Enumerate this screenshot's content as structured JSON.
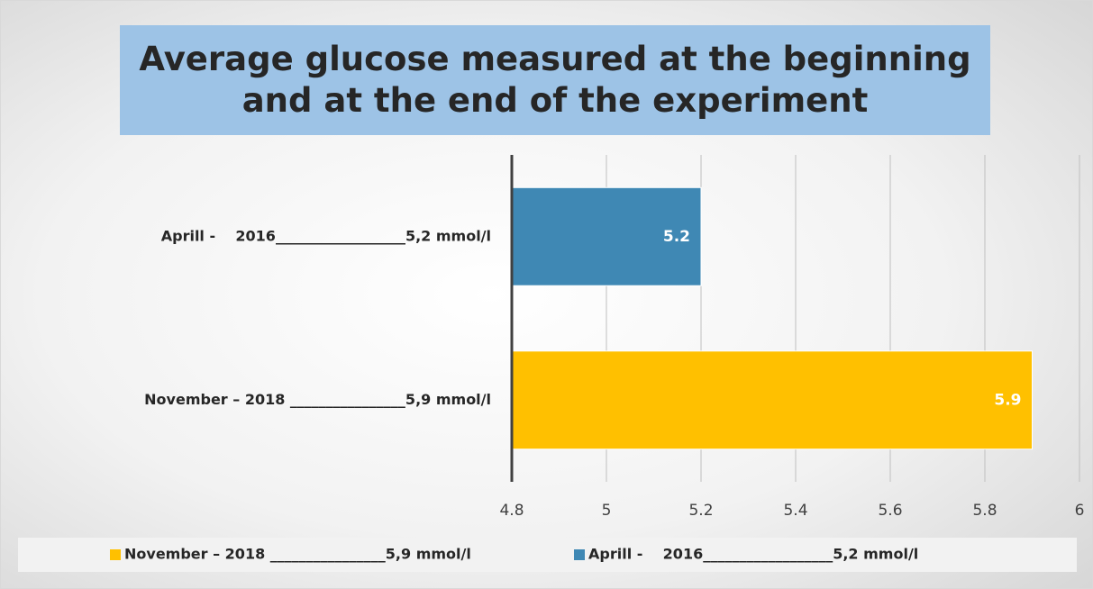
{
  "chart_data": {
    "type": "bar",
    "orientation": "horizontal",
    "title": "Average glucose measured at the beginning and at the end of the experiment",
    "categories": [
      "Aprill -    2016__________________5,2 mmol/l",
      "November – 2018 ________________5,9 mmol/l"
    ],
    "series": [
      {
        "name": "November – 2018 ________________5,9 mmol/l",
        "color": "#ffc000",
        "values": [
          null,
          5.9
        ]
      },
      {
        "name": "Aprill -    2016__________________5,2 mmol/l",
        "color": "#3f88b4",
        "values": [
          5.2,
          null
        ]
      }
    ],
    "xlim": [
      4.8,
      6
    ],
    "xticks": [
      4.8,
      5,
      5.2,
      5.4,
      5.6,
      5.8,
      6
    ],
    "grid": true,
    "legend": "bottom",
    "data_labels": true
  }
}
